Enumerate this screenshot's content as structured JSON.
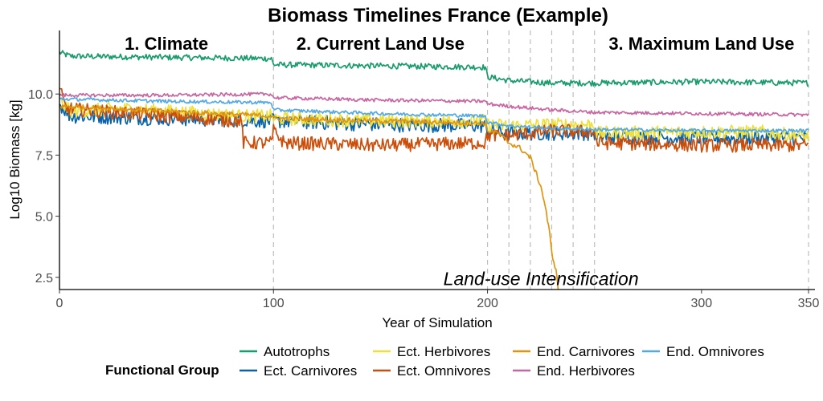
{
  "chart_data": {
    "type": "line",
    "title": "Biomass Timelines France (Example)",
    "xlabel": "Year of Simulation",
    "ylabel": "Log10 Biomass [kg]",
    "xlim": [
      0,
      350
    ],
    "ylim": [
      2.0,
      12.6
    ],
    "x_ticks": [
      {
        "value": 0,
        "label": "0"
      },
      {
        "value": 100,
        "label": "100"
      },
      {
        "value": 200,
        "label": "200"
      },
      {
        "value": 300,
        "label": "300"
      },
      {
        "value": 350,
        "label": "350"
      }
    ],
    "y_ticks": [
      {
        "value": 2.5,
        "label": "2.5"
      },
      {
        "value": 5.0,
        "label": "5.0"
      },
      {
        "value": 7.5,
        "label": "7.5"
      },
      {
        "value": 10.0,
        "label": "10.0"
      }
    ],
    "grid": false,
    "vlines": [
      100,
      200,
      210,
      220,
      230,
      240,
      250,
      350
    ],
    "phases": [
      {
        "label": "1. Climate",
        "x": 50
      },
      {
        "label": "2. Current Land Use",
        "x": 150
      },
      {
        "label": "3. Maximum Land Use",
        "x": 300
      }
    ],
    "annotation": {
      "text": "Land-use Intensification",
      "x": 225,
      "y": 2.45
    },
    "legend": {
      "title": "Functional Group",
      "position": "bottom"
    },
    "series": [
      {
        "name": "Autotrophs",
        "color": "#1a9b6d",
        "noise": 0.12,
        "points": [
          [
            0,
            11.7
          ],
          [
            5,
            11.55
          ],
          [
            50,
            11.5
          ],
          [
            99,
            11.45
          ],
          [
            100,
            11.2
          ],
          [
            150,
            11.15
          ],
          [
            199,
            11.1
          ],
          [
            200,
            10.7
          ],
          [
            210,
            10.55
          ],
          [
            230,
            10.45
          ],
          [
            250,
            10.45
          ],
          [
            300,
            10.5
          ],
          [
            350,
            10.45
          ]
        ]
      },
      {
        "name": "Ect. Carnivores",
        "color": "#0a63aa",
        "noise": 0.3,
        "points": [
          [
            0,
            9.6
          ],
          [
            5,
            9.1
          ],
          [
            50,
            9.0
          ],
          [
            99,
            8.9
          ],
          [
            100,
            8.9
          ],
          [
            150,
            8.75
          ],
          [
            199,
            8.7
          ],
          [
            200,
            8.5
          ],
          [
            210,
            8.4
          ],
          [
            230,
            8.4
          ],
          [
            250,
            8.4
          ],
          [
            251,
            8.25
          ],
          [
            300,
            8.2
          ],
          [
            350,
            8.2
          ]
        ]
      },
      {
        "name": "Ect. Herbivores",
        "color": "#ede03a",
        "noise": 0.28,
        "points": [
          [
            0,
            9.7
          ],
          [
            5,
            9.3
          ],
          [
            30,
            9.4
          ],
          [
            50,
            9.3
          ],
          [
            85,
            9.1
          ],
          [
            99,
            9.1
          ],
          [
            100,
            9.0
          ],
          [
            150,
            8.9
          ],
          [
            199,
            8.9
          ],
          [
            200,
            8.75
          ],
          [
            210,
            8.7
          ],
          [
            230,
            8.75
          ],
          [
            250,
            8.75
          ],
          [
            251,
            8.4
          ],
          [
            300,
            8.45
          ],
          [
            330,
            8.45
          ],
          [
            350,
            8.25
          ]
        ]
      },
      {
        "name": "Ect. Omnivores",
        "color": "#cc4e0b",
        "noise": 0.28,
        "points": [
          [
            0,
            10.2
          ],
          [
            3,
            9.4
          ],
          [
            50,
            9.1
          ],
          [
            85,
            8.9
          ],
          [
            86,
            8.0
          ],
          [
            99,
            8.0
          ],
          [
            100,
            8.5
          ],
          [
            105,
            8.0
          ],
          [
            150,
            7.9
          ],
          [
            199,
            8.0
          ],
          [
            200,
            8.3
          ],
          [
            210,
            8.3
          ],
          [
            230,
            8.5
          ],
          [
            250,
            8.45
          ],
          [
            251,
            8.0
          ],
          [
            300,
            7.9
          ],
          [
            350,
            7.9
          ]
        ]
      },
      {
        "name": "End. Carnivores",
        "color": "#de9511",
        "noise": 0.1,
        "points": [
          [
            0,
            9.5
          ],
          [
            50,
            9.3
          ],
          [
            99,
            9.1
          ],
          [
            100,
            9.0
          ],
          [
            150,
            8.9
          ],
          [
            199,
            8.8
          ],
          [
            200,
            8.5
          ],
          [
            205,
            8.4
          ],
          [
            210,
            8.0
          ],
          [
            215,
            7.8
          ],
          [
            220,
            7.4
          ],
          [
            225,
            6.2
          ],
          [
            227,
            5.4
          ],
          [
            229,
            4.3
          ],
          [
            230,
            3.5
          ],
          [
            232,
            2.8
          ],
          [
            233,
            2.0
          ]
        ]
      },
      {
        "name": "End. Herbivores",
        "color": "#c766a1",
        "noise": 0.07,
        "points": [
          [
            0,
            9.95
          ],
          [
            50,
            9.95
          ],
          [
            99,
            10.0
          ],
          [
            100,
            9.85
          ],
          [
            150,
            9.75
          ],
          [
            199,
            9.7
          ],
          [
            200,
            9.6
          ],
          [
            210,
            9.5
          ],
          [
            230,
            9.35
          ],
          [
            250,
            9.25
          ],
          [
            300,
            9.2
          ],
          [
            350,
            9.15
          ]
        ]
      },
      {
        "name": "End. Omnivores",
        "color": "#52a9e6",
        "noise": 0.07,
        "points": [
          [
            0,
            9.8
          ],
          [
            50,
            9.7
          ],
          [
            99,
            9.65
          ],
          [
            100,
            9.35
          ],
          [
            150,
            9.2
          ],
          [
            199,
            9.1
          ],
          [
            200,
            8.85
          ],
          [
            210,
            8.7
          ],
          [
            230,
            8.6
          ],
          [
            250,
            8.55
          ],
          [
            300,
            8.5
          ],
          [
            350,
            8.5
          ]
        ]
      }
    ]
  }
}
